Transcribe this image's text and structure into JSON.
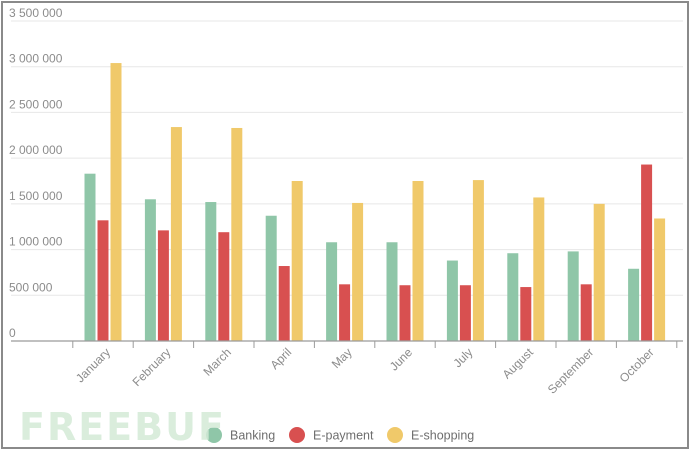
{
  "watermark": "FREEBUF",
  "chart_data": {
    "type": "bar",
    "categories": [
      "January",
      "February",
      "March",
      "April",
      "May",
      "June",
      "July",
      "August",
      "September",
      "October"
    ],
    "series": [
      {
        "name": "Banking",
        "color": "#8fc6a8",
        "values": [
          1830000,
          1550000,
          1520000,
          1370000,
          1080000,
          1080000,
          880000,
          960000,
          980000,
          790000
        ]
      },
      {
        "name": "E-payment",
        "color": "#d85050",
        "values": [
          1320000,
          1210000,
          1190000,
          820000,
          620000,
          610000,
          610000,
          590000,
          620000,
          1930000
        ]
      },
      {
        "name": "E-shopping",
        "color": "#f0c96a",
        "values": [
          3040000,
          2340000,
          2330000,
          1750000,
          1510000,
          1750000,
          1760000,
          1570000,
          1500000,
          1340000
        ]
      }
    ],
    "yticks": [
      "0",
      "500 000",
      "1 000 000",
      "1 500 000",
      "2 000 000",
      "2 500 000",
      "3 000 000",
      "3 500 000"
    ],
    "ylim": [
      0,
      3500000
    ],
    "grid": true,
    "legend": "bottom-center"
  }
}
